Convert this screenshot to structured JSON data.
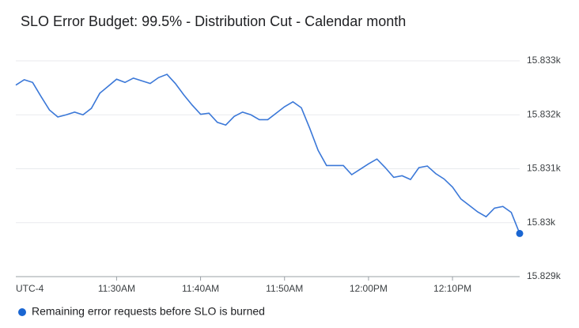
{
  "chart_data": {
    "type": "line",
    "title": "SLO Error Budget: 99.5% - Distribution Cut - Calendar month",
    "timezone_label": "UTC-4",
    "x": [
      "11:18AM",
      "11:19AM",
      "11:20AM",
      "11:21AM",
      "11:22AM",
      "11:23AM",
      "11:24AM",
      "11:25AM",
      "11:26AM",
      "11:27AM",
      "11:28AM",
      "11:29AM",
      "11:30AM",
      "11:31AM",
      "11:32AM",
      "11:33AM",
      "11:34AM",
      "11:35AM",
      "11:36AM",
      "11:37AM",
      "11:38AM",
      "11:39AM",
      "11:40AM",
      "11:41AM",
      "11:42AM",
      "11:43AM",
      "11:44AM",
      "11:45AM",
      "11:46AM",
      "11:47AM",
      "11:48AM",
      "11:49AM",
      "11:50AM",
      "11:51AM",
      "11:52AM",
      "11:53AM",
      "11:54AM",
      "11:55AM",
      "11:56AM",
      "11:57AM",
      "11:58AM",
      "11:59AM",
      "12:00PM",
      "12:01PM",
      "12:02PM",
      "12:03PM",
      "12:04PM",
      "12:05PM",
      "12:06PM",
      "12:07PM",
      "12:08PM",
      "12:09PM",
      "12:10PM",
      "12:11PM",
      "12:12PM",
      "12:13PM",
      "12:14PM",
      "12:15PM",
      "12:16PM",
      "12:17PM",
      "12:18PM"
    ],
    "series": [
      {
        "name": "Remaining error requests before SLO is burned",
        "color": "#3b78d8",
        "values": [
          15832.55,
          15832.65,
          15832.6,
          15832.34,
          15832.09,
          15831.96,
          15832.0,
          15832.05,
          15832.0,
          15832.12,
          15832.4,
          15832.53,
          15832.66,
          15832.6,
          15832.68,
          15832.63,
          15832.58,
          15832.69,
          15832.75,
          15832.58,
          15832.37,
          15832.18,
          15832.01,
          15832.03,
          15831.86,
          15831.81,
          15831.97,
          15832.05,
          15832.0,
          15831.91,
          15831.91,
          15832.03,
          15832.15,
          15832.24,
          15832.13,
          15831.75,
          15831.34,
          15831.06,
          15831.06,
          15831.06,
          15830.89,
          15830.99,
          15831.09,
          15831.18,
          15831.02,
          15830.84,
          15830.87,
          15830.8,
          15831.02,
          15831.05,
          15830.91,
          15830.81,
          15830.66,
          15830.44,
          15830.32,
          15830.2,
          15830.11,
          15830.27,
          15830.3,
          15830.19,
          15829.8
        ]
      }
    ],
    "xlim": [
      "11:18AM",
      "12:18PM"
    ],
    "xticks": [
      "11:30AM",
      "11:40AM",
      "11:50AM",
      "12:00PM",
      "12:10PM"
    ],
    "ylim": [
      15829,
      15833
    ],
    "yticks": [
      {
        "value": 15829,
        "label": "15.829k"
      },
      {
        "value": 15830,
        "label": "15.83k"
      },
      {
        "value": 15831,
        "label": "15.831k"
      },
      {
        "value": 15832,
        "label": "15.832k"
      },
      {
        "value": 15833,
        "label": "15.833k"
      }
    ],
    "grid": true
  }
}
